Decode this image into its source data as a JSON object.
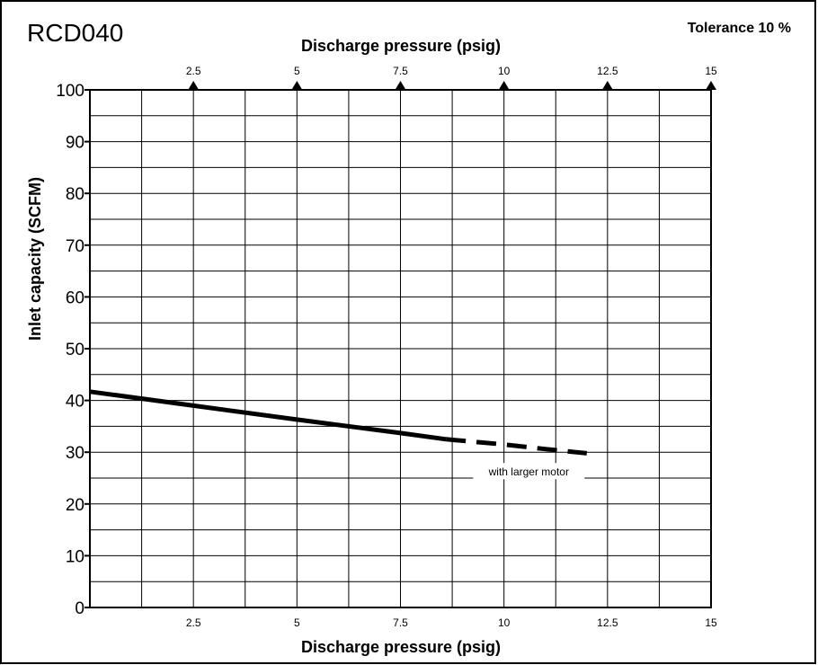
{
  "chart_data": {
    "type": "line",
    "title": "RCD040",
    "tolerance_label": "Tolerance 10 %",
    "xlabel_top": "Discharge pressure (psig)",
    "xlabel": "Discharge pressure (psig)",
    "ylabel": "Inlet capacity (SCFM)",
    "xlim": [
      0,
      15
    ],
    "ylim": [
      0,
      100
    ],
    "x_ticks": [
      "2.5",
      "5",
      "7.5",
      "10",
      "12.5",
      "15"
    ],
    "y_ticks": [
      "0",
      "10",
      "20",
      "30",
      "40",
      "50",
      "60",
      "70",
      "80",
      "90",
      "100"
    ],
    "grid": true,
    "series": [
      {
        "style": "solid",
        "x": [
          0,
          2.5,
          5,
          7.5,
          8.6
        ],
        "y": [
          41.7,
          39.0,
          36.3,
          33.7,
          32.5
        ]
      },
      {
        "style": "dashed",
        "x": [
          8.6,
          10,
          11,
          12
        ],
        "y": [
          32.5,
          31.5,
          30.6,
          29.8
        ]
      }
    ],
    "annotations": [
      {
        "text": "with larger motor",
        "x": 10.6,
        "y": 26.0
      }
    ]
  }
}
